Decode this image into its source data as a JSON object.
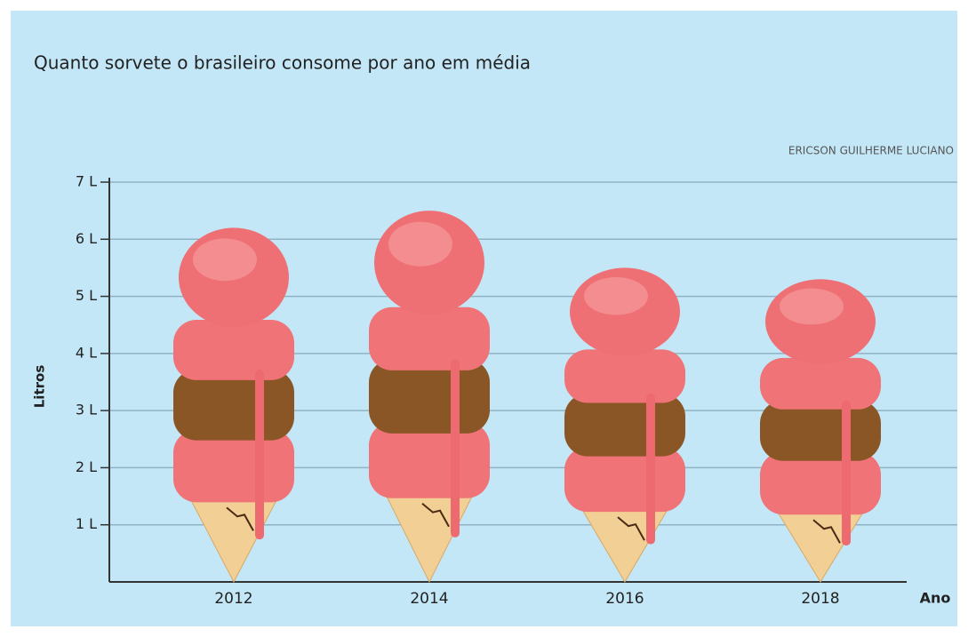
{
  "chart_data": {
    "type": "pictogram-bar",
    "title": "Quanto sorvete o brasileiro consome por ano em média",
    "credit": "ERICSON GUILHERME LUCIANO",
    "y_label": "Litros",
    "x_label": "Ano",
    "categories": [
      "2012",
      "2014",
      "2016",
      "2018"
    ],
    "values": [
      6.2,
      6.5,
      5.5,
      5.3
    ],
    "ylim": [
      0,
      7
    ],
    "yticks": [
      {
        "value": 1,
        "label": "1 L"
      },
      {
        "value": 2,
        "label": "2 L"
      },
      {
        "value": 3,
        "label": "3 L"
      },
      {
        "value": 4,
        "label": "4 L"
      },
      {
        "value": 5,
        "label": "5 L"
      },
      {
        "value": 6,
        "label": "6 L"
      },
      {
        "value": 7,
        "label": "7 L"
      }
    ],
    "grid": true
  }
}
